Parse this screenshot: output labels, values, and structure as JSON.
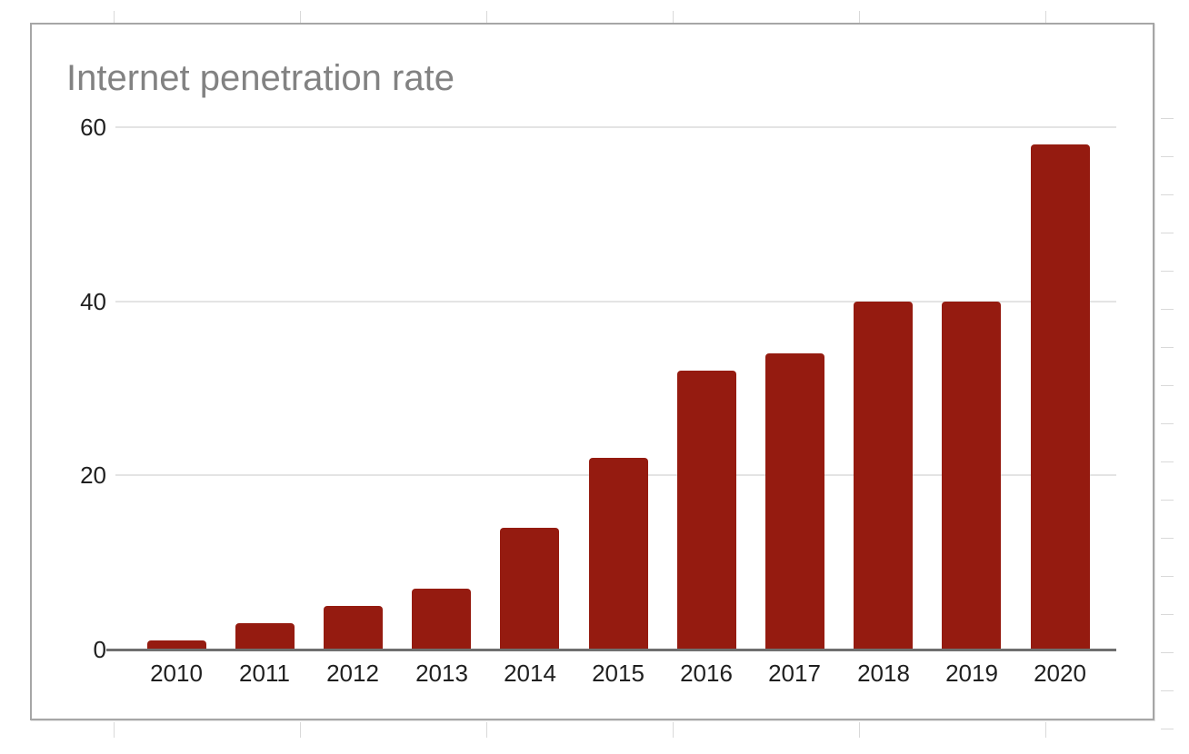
{
  "chart_data": {
    "type": "bar",
    "title": "Internet penetration rate",
    "categories": [
      "2010",
      "2011",
      "2012",
      "2013",
      "2014",
      "2015",
      "2016",
      "2017",
      "2018",
      "2019",
      "2020"
    ],
    "values": [
      1,
      3,
      5,
      7,
      14,
      22,
      32,
      34,
      40,
      40,
      58
    ],
    "xlabel": "",
    "ylabel": "",
    "ylim": [
      0,
      60
    ],
    "yticks": [
      0,
      20,
      40,
      60
    ],
    "grid": "horizontal",
    "legend": "none",
    "bar_color": "#951b10"
  },
  "colors": {
    "bar": "#951b10",
    "title_text": "#828282",
    "axis_text": "#1f1f1f",
    "gridline": "#e4e4e4",
    "axis_line": "#6f6f6f",
    "card_border": "#a6a6a6",
    "card_background": "#ffffff",
    "page_background": "#ffffff",
    "spreadsheet_stub": "#d9d9d9"
  }
}
